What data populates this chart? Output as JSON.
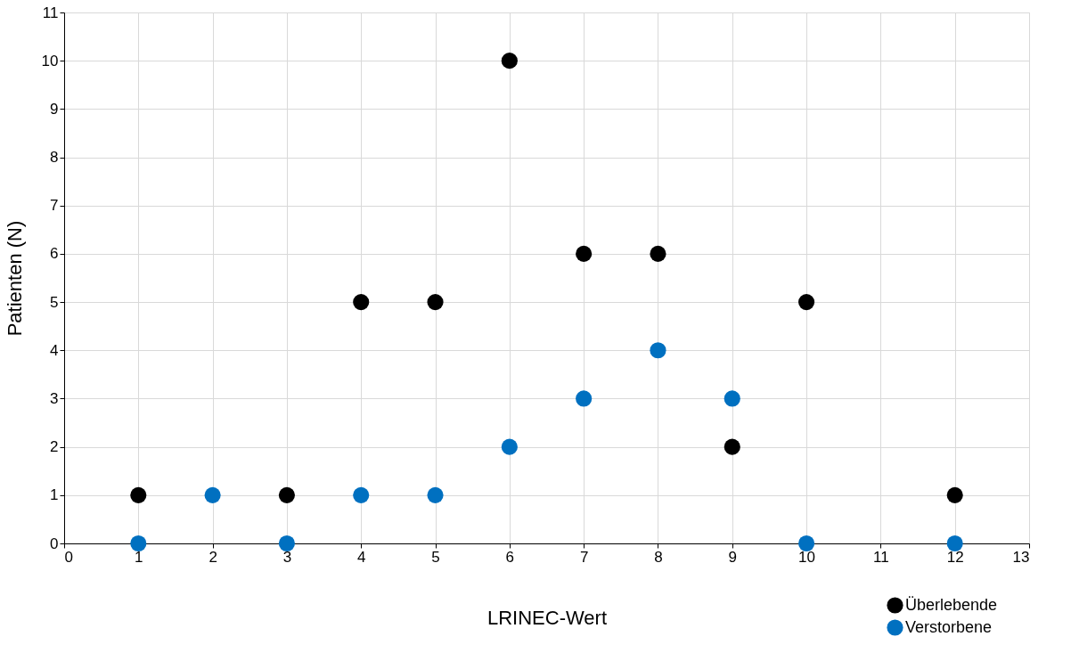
{
  "chart_data": {
    "type": "scatter",
    "xlabel": "LRINEC-Wert",
    "ylabel": "Patienten (N)",
    "xlim": [
      0,
      13
    ],
    "xticks": [
      0,
      1,
      2,
      3,
      4,
      5,
      6,
      7,
      8,
      9,
      10,
      11,
      12,
      13
    ],
    "ylim": [
      0,
      11
    ],
    "yticks": [
      0,
      1,
      2,
      3,
      4,
      5,
      6,
      7,
      8,
      9,
      10,
      11
    ],
    "grid": true,
    "legend": "bottom right",
    "marker": "circle",
    "series": [
      {
        "name": "Überlebende",
        "color": "#000000",
        "x": [
          1,
          3,
          4,
          5,
          6,
          7,
          8,
          9,
          10,
          12
        ],
        "values": [
          1,
          1,
          5,
          5,
          10,
          6,
          6,
          2,
          5,
          1
        ]
      },
      {
        "name": "Verstorbene",
        "color": "#0070c0",
        "x": [
          1,
          2,
          3,
          4,
          5,
          6,
          7,
          8,
          9,
          10,
          12
        ],
        "values": [
          0,
          1,
          0,
          1,
          1,
          2,
          3,
          4,
          3,
          0,
          0
        ]
      }
    ]
  }
}
